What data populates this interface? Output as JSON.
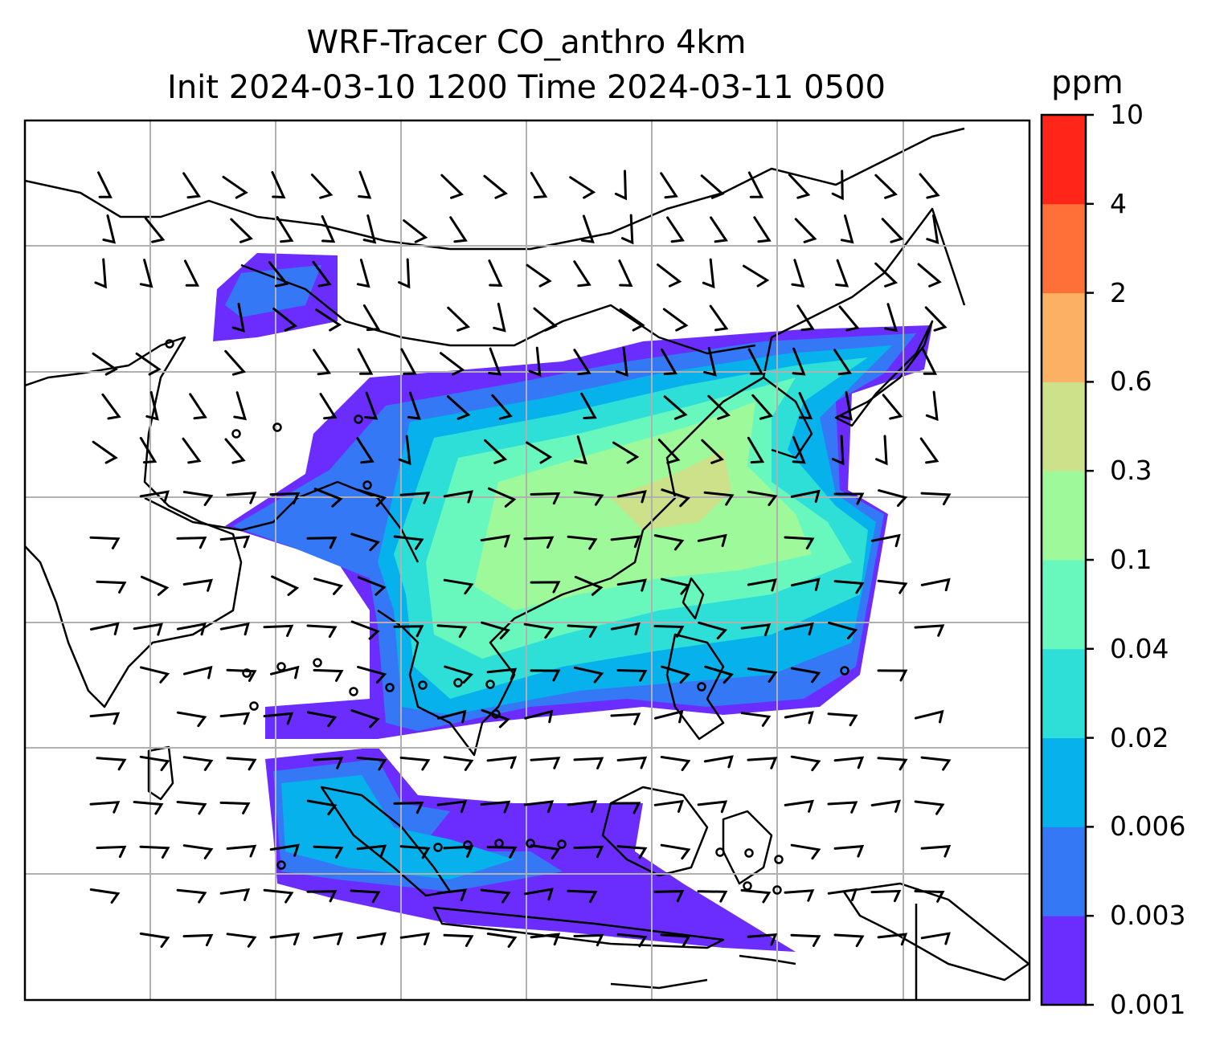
{
  "title": {
    "line1": "WRF-Tracer CO_anthro 4km",
    "line2": "Init 2024-03-10 1200 Time 2024-03-11 0500"
  },
  "colorbar": {
    "unit": "ppm",
    "ticks": [
      "0.001",
      "0.003",
      "0.006",
      "0.02",
      "0.04",
      "0.1",
      "0.3",
      "0.6",
      "2",
      "4",
      "10"
    ],
    "colors": [
      "#6b2dfd",
      "#3478f6",
      "#07b1eb",
      "#2ddfd6",
      "#68f8be",
      "#9df99a",
      "#cde18a",
      "#fcb064",
      "#ff7039",
      "#ff2619"
    ]
  },
  "map": {
    "field": "CO_anthro",
    "gridlines": true,
    "features": [
      "coastlines",
      "country-borders",
      "wind-barbs",
      "calm-wind-circles",
      "tracer-concentration-fill"
    ]
  }
}
